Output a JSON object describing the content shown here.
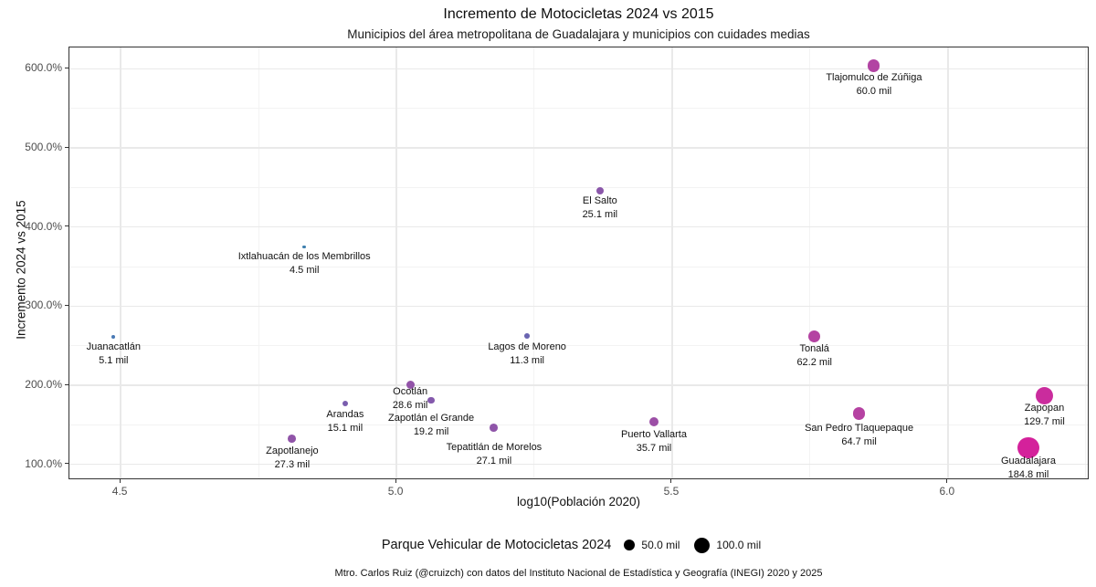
{
  "chart_data": {
    "type": "scatter",
    "title": "Incremento de Motocicletas 2024 vs 2015",
    "subtitle": "Municipios del área metropolitana de Guadalajara y municipios con cuidades medias",
    "caption": "Mtro. Carlos Ruiz (@cruizch) con datos del Instituto Nacional de Estadística y Geografía (INEGI) 2020 y 2025",
    "xlabel": "log10(Población 2020)",
    "ylabel": "Incremento 2024 vs 2015",
    "xlim": [
      4.407,
      6.257
    ],
    "ylim": [
      80,
      627
    ],
    "grid": true,
    "x_ticks": {
      "major": [
        4.5,
        5.0,
        5.5,
        6.0
      ],
      "labels": [
        "4.5",
        "5.0",
        "5.5",
        "6.0"
      ],
      "minor": [
        4.75,
        5.25,
        5.75,
        6.25
      ]
    },
    "y_ticks": {
      "major": [
        100,
        200,
        300,
        400,
        500,
        600
      ],
      "labels": [
        "100.0%",
        "200.0%",
        "300.0%",
        "400.0%",
        "500.0%",
        "600.0%"
      ],
      "minor": [
        150,
        250,
        350,
        450,
        550
      ]
    },
    "size_scale": {
      "radius_px_per_sqrt_mil": 0.85
    },
    "legend": {
      "title": "Parque Vehicular de Motocicletas 2024",
      "position": "bottom",
      "swatch_color": "#000000",
      "items": [
        {
          "label": "50.0 mil",
          "value": 50
        },
        {
          "label": "100.0 mil",
          "value": 100
        }
      ]
    },
    "points": [
      {
        "name": "Juanacatlán",
        "x": 4.487,
        "y": 261,
        "size_mil": 5.1,
        "value_label": "5.1 mil",
        "color": "#4a7ab5"
      },
      {
        "name": "Zapotlanejo",
        "x": 4.811,
        "y": 133,
        "size_mil": 27.3,
        "value_label": "27.3 mil",
        "color": "#9054a8"
      },
      {
        "name": "Ixtlahuacán de los Membrillos",
        "x": 4.833,
        "y": 375,
        "size_mil": 4.5,
        "value_label": "4.5 mil",
        "color": "#3e7fae"
      },
      {
        "name": "Arandas",
        "x": 4.907,
        "y": 177,
        "size_mil": 15.1,
        "value_label": "15.1 mil",
        "color": "#7a5dae"
      },
      {
        "name": "Ocotlán",
        "x": 5.025,
        "y": 201,
        "size_mil": 28.6,
        "value_label": "28.6 mil",
        "color": "#9253a8",
        "label_dy": -6
      },
      {
        "name": "Zapotlán el Grande",
        "x": 5.063,
        "y": 181,
        "size_mil": 19.2,
        "value_label": "19.2 mil",
        "color": "#8459ac",
        "label_dy": 7
      },
      {
        "name": "Tepatitlán de Morelos",
        "x": 5.177,
        "y": 146,
        "size_mil": 27.1,
        "value_label": "27.1 mil",
        "color": "#8f55a9",
        "label_dy": 8
      },
      {
        "name": "Lagos de Moreno",
        "x": 5.237,
        "y": 262,
        "size_mil": 11.3,
        "value_label": "11.3 mil",
        "color": "#6a65b1"
      },
      {
        "name": "El Salto",
        "x": 5.369,
        "y": 446,
        "size_mil": 25.1,
        "value_label": "25.1 mil",
        "color": "#8b57aa",
        "label_dy": -2
      },
      {
        "name": "Puerto Vallarta",
        "x": 5.467,
        "y": 154,
        "size_mil": 35.7,
        "value_label": "35.7 mil",
        "color": "#9c4fa6"
      },
      {
        "name": "Tonalá",
        "x": 5.758,
        "y": 262,
        "size_mil": 62.2,
        "value_label": "62.2 mil",
        "color": "#b443a2",
        "label_dy": -2
      },
      {
        "name": "San Pedro Tlaquepaque",
        "x": 5.839,
        "y": 164,
        "size_mil": 64.7,
        "value_label": "64.7 mil",
        "color": "#b542a2"
      },
      {
        "name": "Tlajomulco de Zúñiga",
        "x": 5.866,
        "y": 604,
        "size_mil": 60.0,
        "value_label": "60.0 mil",
        "color": "#b244a3",
        "label_dy": -3
      },
      {
        "name": "Guadalajara",
        "x": 6.146,
        "y": 121,
        "size_mil": 184.8,
        "value_label": "184.8 mil",
        "color": "#d4219b",
        "label_dy": -6
      },
      {
        "name": "Zapopan",
        "x": 6.175,
        "y": 187,
        "size_mil": 129.7,
        "value_label": "129.7 mil",
        "color": "#ca2c9d",
        "label_dy": -5
      }
    ],
    "colors": {
      "grid_major": "#e9e9e9",
      "grid_minor": "#f3f3f3",
      "panel_border": "#333333",
      "tick_label": "#4d4d4d"
    }
  }
}
